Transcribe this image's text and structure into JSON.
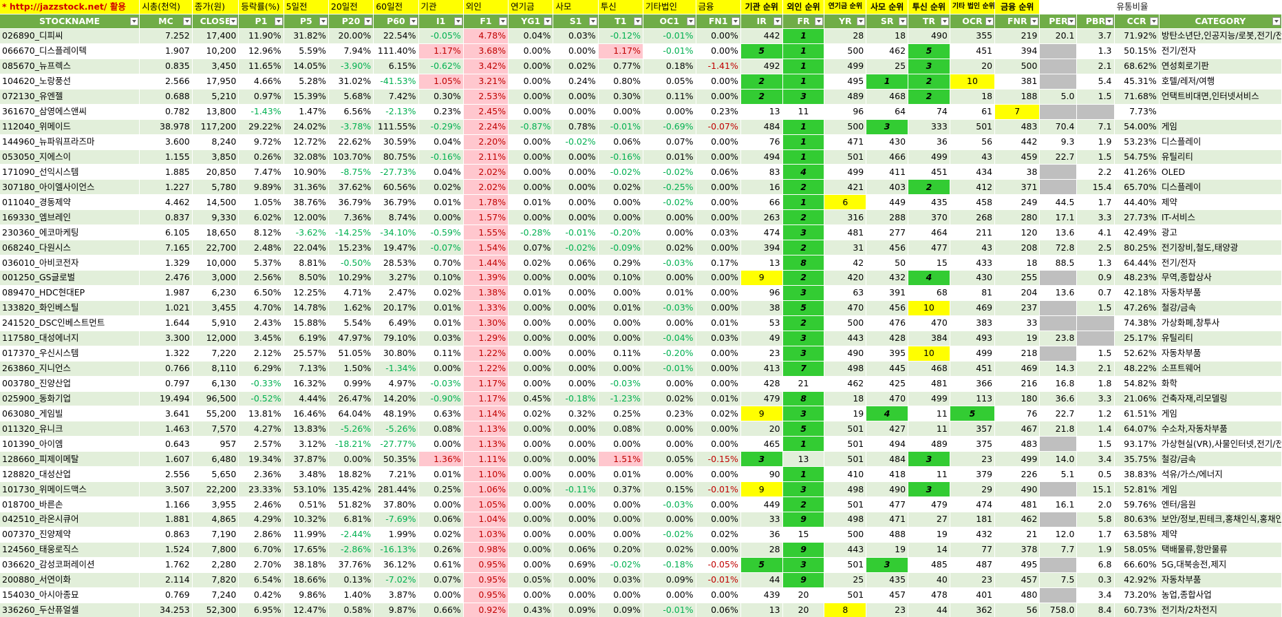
{
  "title_row": [
    "* http://jazzstock.net/ 활용",
    "시총(천억)",
    "종가(원)",
    "등락률(%)",
    "5일전",
    "20일전",
    "60일전",
    "기관",
    "외인",
    "연기금",
    "사모",
    "투신",
    "기타법인",
    "금융",
    "기관 순위",
    "외인 순위",
    "연기금 순위",
    "사모 순위",
    "투신 순위",
    "기타 법인 순위",
    "금융 순위",
    "",
    "",
    "유통비율",
    ""
  ],
  "headers": [
    "STOCKNAME",
    "MC",
    "CLOSE",
    "P1",
    "P5",
    "P20",
    "P60",
    "I1",
    "F1",
    "YG1",
    "S1",
    "T1",
    "OC1",
    "FN1",
    "IR",
    "FR",
    "YR",
    "SR",
    "TR",
    "OCR",
    "FNR",
    "PER",
    "PBR",
    "CCR",
    "CATEGORY"
  ],
  "rows": [
    [
      "026890_디피씨",
      "7.252",
      "17,400",
      "11.90%",
      "31.82%",
      "20.00%",
      "22.54%",
      "-0.05%",
      "4.78%",
      "0.04%",
      "0.03%",
      "-0.12%",
      "-0.01%",
      "0.00%",
      "442",
      "1",
      "28",
      "18",
      "490",
      "355",
      "219",
      "20.1",
      "3.7",
      "71.92%",
      "방탄소년단,인공지능/로봇,전기/전자"
    ],
    [
      "066670_디스플레이텍",
      "1.907",
      "10,200",
      "12.96%",
      "5.59%",
      "7.94%",
      "111.40%",
      "1.17%",
      "3.68%",
      "0.00%",
      "0.00%",
      "1.17%",
      "-0.01%",
      "0.00%",
      "5",
      "1",
      "500",
      "462",
      "5",
      "451",
      "394",
      "",
      "1.3",
      "50.15%",
      "전기/전자"
    ],
    [
      "085670_뉴프렉스",
      "0.835",
      "3,450",
      "11.65%",
      "14.05%",
      "-3.90%",
      "6.15%",
      "-0.62%",
      "3.42%",
      "0.00%",
      "0.02%",
      "0.77%",
      "0.18%",
      "-1.41%",
      "492",
      "1",
      "499",
      "25",
      "3",
      "20",
      "500",
      "",
      "2.1",
      "68.62%",
      "연성회로기판"
    ],
    [
      "104620_노랑풍선",
      "2.566",
      "17,950",
      "4.66%",
      "5.28%",
      "31.02%",
      "-41.53%",
      "1.05%",
      "3.21%",
      "0.00%",
      "0.24%",
      "0.80%",
      "0.05%",
      "0.00%",
      "2",
      "1",
      "495",
      "1",
      "2",
      "10",
      "381",
      "",
      "5.4",
      "45.31%",
      "호텔/레저/여행"
    ],
    [
      "072130_유엔젤",
      "0.688",
      "5,210",
      "0.97%",
      "15.39%",
      "5.68%",
      "7.42%",
      "0.30%",
      "2.53%",
      "0.00%",
      "0.00%",
      "0.30%",
      "0.11%",
      "0.00%",
      "2",
      "3",
      "489",
      "468",
      "2",
      "18",
      "188",
      "5.0",
      "1.5",
      "71.68%",
      "언택트비대면,인터넷서비스"
    ],
    [
      "361670_삼영에스앤씨",
      "0.782",
      "13,800",
      "-1.43%",
      "1.47%",
      "6.56%",
      "-2.13%",
      "0.23%",
      "2.45%",
      "0.00%",
      "0.00%",
      "0.00%",
      "0.00%",
      "0.23%",
      "13",
      "11",
      "96",
      "64",
      "74",
      "61",
      "7",
      "",
      "",
      "7.73%",
      ""
    ],
    [
      "112040_위메이드",
      "38.978",
      "117,200",
      "29.22%",
      "24.02%",
      "-3.78%",
      "111.55%",
      "-0.29%",
      "2.24%",
      "-0.87%",
      "0.78%",
      "-0.01%",
      "-0.69%",
      "-0.07%",
      "484",
      "1",
      "500",
      "3",
      "333",
      "501",
      "483",
      "70.4",
      "7.1",
      "54.00%",
      "게임"
    ],
    [
      "144960_뉴파워프라즈마",
      "3.600",
      "8,240",
      "9.72%",
      "12.72%",
      "22.62%",
      "30.59%",
      "0.04%",
      "2.20%",
      "0.00%",
      "-0.02%",
      "0.06%",
      "0.07%",
      "0.00%",
      "76",
      "1",
      "471",
      "430",
      "36",
      "56",
      "442",
      "9.3",
      "1.9",
      "53.23%",
      "디스플레이"
    ],
    [
      "053050_지에스이",
      "1.155",
      "3,850",
      "0.26%",
      "32.08%",
      "103.70%",
      "80.75%",
      "-0.16%",
      "2.11%",
      "0.00%",
      "0.00%",
      "-0.16%",
      "0.01%",
      "0.00%",
      "494",
      "1",
      "501",
      "466",
      "499",
      "43",
      "459",
      "22.7",
      "1.5",
      "54.75%",
      "유틸리티"
    ],
    [
      "171090_선익시스템",
      "1.885",
      "20,850",
      "7.47%",
      "10.90%",
      "-8.75%",
      "-27.73%",
      "0.04%",
      "2.02%",
      "0.00%",
      "0.00%",
      "-0.02%",
      "-0.02%",
      "0.06%",
      "83",
      "4",
      "499",
      "411",
      "451",
      "434",
      "38",
      "",
      "2.2",
      "41.26%",
      "OLED"
    ],
    [
      "307180_아이엘사이언스",
      "1.227",
      "5,780",
      "9.89%",
      "31.36%",
      "37.62%",
      "60.56%",
      "0.02%",
      "2.02%",
      "0.00%",
      "0.00%",
      "0.02%",
      "-0.25%",
      "0.00%",
      "16",
      "2",
      "421",
      "403",
      "2",
      "412",
      "371",
      "",
      "15.4",
      "65.70%",
      "디스플레이"
    ],
    [
      "011040_경동제약",
      "4.462",
      "14,500",
      "1.05%",
      "38.76%",
      "36.79%",
      "36.79%",
      "0.01%",
      "1.78%",
      "0.01%",
      "0.00%",
      "0.00%",
      "-0.02%",
      "0.00%",
      "66",
      "1",
      "6",
      "449",
      "435",
      "458",
      "249",
      "44.5",
      "1.7",
      "44.40%",
      "제약"
    ],
    [
      "169330_엠브레인",
      "0.837",
      "9,330",
      "6.02%",
      "12.00%",
      "7.36%",
      "8.74%",
      "0.00%",
      "1.57%",
      "0.00%",
      "0.00%",
      "0.00%",
      "0.00%",
      "0.00%",
      "263",
      "2",
      "316",
      "288",
      "370",
      "268",
      "280",
      "17.1",
      "3.3",
      "27.73%",
      "IT-서비스"
    ],
    [
      "230360_에코마케팅",
      "6.105",
      "18,650",
      "8.12%",
      "-3.62%",
      "-14.25%",
      "-34.10%",
      "-0.59%",
      "1.55%",
      "-0.28%",
      "-0.01%",
      "-0.20%",
      "0.00%",
      "0.03%",
      "474",
      "3",
      "481",
      "277",
      "464",
      "211",
      "120",
      "13.6",
      "4.1",
      "42.49%",
      "광고"
    ],
    [
      "068240_다원시스",
      "7.165",
      "22,700",
      "2.48%",
      "22.04%",
      "15.23%",
      "19.47%",
      "-0.07%",
      "1.54%",
      "0.07%",
      "-0.02%",
      "-0.09%",
      "0.02%",
      "0.00%",
      "394",
      "2",
      "31",
      "456",
      "477",
      "43",
      "208",
      "72.8",
      "2.5",
      "80.25%",
      "전기장비,철도,태양광"
    ],
    [
      "036010_아비코전자",
      "1.329",
      "10,000",
      "5.37%",
      "8.81%",
      "-0.50%",
      "28.53%",
      "0.70%",
      "1.44%",
      "0.02%",
      "0.06%",
      "0.29%",
      "-0.03%",
      "0.17%",
      "13",
      "8",
      "42",
      "50",
      "15",
      "433",
      "18",
      "88.5",
      "1.3",
      "64.44%",
      "전기/전자"
    ],
    [
      "001250_GS글로벌",
      "2.476",
      "3,000",
      "2.56%",
      "8.50%",
      "10.29%",
      "3.27%",
      "0.10%",
      "1.39%",
      "0.00%",
      "0.00%",
      "0.10%",
      "0.00%",
      "0.00%",
      "9",
      "2",
      "420",
      "432",
      "4",
      "430",
      "255",
      "",
      "0.9",
      "48.23%",
      "무역,종합상사"
    ],
    [
      "089470_HDC현대EP",
      "1.987",
      "6,230",
      "6.50%",
      "12.25%",
      "4.71%",
      "2.47%",
      "0.02%",
      "1.38%",
      "0.01%",
      "0.00%",
      "0.00%",
      "0.01%",
      "0.00%",
      "96",
      "3",
      "63",
      "391",
      "68",
      "81",
      "204",
      "13.6",
      "0.7",
      "42.18%",
      "자동차부품"
    ],
    [
      "133820_화인베스틸",
      "1.021",
      "3,455",
      "4.70%",
      "14.78%",
      "1.62%",
      "20.17%",
      "0.01%",
      "1.33%",
      "0.00%",
      "0.00%",
      "0.01%",
      "-0.03%",
      "0.00%",
      "38",
      "5",
      "470",
      "456",
      "10",
      "469",
      "237",
      "",
      "1.5",
      "47.26%",
      "철강/금속"
    ],
    [
      "241520_DSC인베스트먼트",
      "1.644",
      "5,910",
      "2.43%",
      "15.88%",
      "5.54%",
      "6.49%",
      "0.01%",
      "1.30%",
      "0.00%",
      "0.00%",
      "0.00%",
      "0.00%",
      "0.01%",
      "53",
      "2",
      "500",
      "476",
      "470",
      "383",
      "33",
      "",
      "",
      "74.38%",
      "가상화폐,창투사"
    ],
    [
      "117580_대성에너지",
      "3.300",
      "12,000",
      "3.45%",
      "6.19%",
      "47.97%",
      "79.10%",
      "0.03%",
      "1.29%",
      "0.00%",
      "0.00%",
      "0.00%",
      "-0.04%",
      "0.03%",
      "49",
      "3",
      "443",
      "428",
      "384",
      "493",
      "19",
      "23.8",
      "",
      "25.17%",
      "유틸리티"
    ],
    [
      "017370_우신시스템",
      "1.322",
      "7,220",
      "2.12%",
      "25.57%",
      "51.05%",
      "30.80%",
      "0.11%",
      "1.22%",
      "0.00%",
      "0.00%",
      "0.11%",
      "-0.20%",
      "0.00%",
      "23",
      "3",
      "490",
      "395",
      "10",
      "499",
      "218",
      "",
      "1.5",
      "52.62%",
      "자동차부품"
    ],
    [
      "263860_지니언스",
      "0.766",
      "8,110",
      "6.29%",
      "7.13%",
      "1.50%",
      "-1.34%",
      "0.00%",
      "1.22%",
      "0.00%",
      "0.00%",
      "0.00%",
      "-0.01%",
      "0.00%",
      "413",
      "7",
      "498",
      "445",
      "468",
      "451",
      "469",
      "14.3",
      "2.1",
      "48.22%",
      "소프트웨어"
    ],
    [
      "003780_진양산업",
      "0.797",
      "6,130",
      "-0.33%",
      "16.32%",
      "0.99%",
      "4.97%",
      "-0.03%",
      "1.17%",
      "0.00%",
      "0.00%",
      "-0.03%",
      "0.00%",
      "0.00%",
      "428",
      "21",
      "462",
      "425",
      "481",
      "366",
      "216",
      "16.8",
      "1.8",
      "54.82%",
      "화학"
    ],
    [
      "025900_동화기업",
      "19.494",
      "96,500",
      "-0.52%",
      "4.44%",
      "26.47%",
      "14.20%",
      "-0.90%",
      "1.17%",
      "0.45%",
      "-0.18%",
      "-1.23%",
      "0.02%",
      "0.01%",
      "479",
      "8",
      "18",
      "470",
      "499",
      "113",
      "180",
      "36.6",
      "3.3",
      "21.06%",
      "건축자재,리모델링"
    ],
    [
      "063080_게임빌",
      "3.641",
      "55,200",
      "13.81%",
      "16.46%",
      "64.04%",
      "48.19%",
      "0.63%",
      "1.14%",
      "0.02%",
      "0.32%",
      "0.25%",
      "0.23%",
      "0.02%",
      "9",
      "3",
      "19",
      "4",
      "11",
      "5",
      "76",
      "22.7",
      "1.2",
      "61.51%",
      "게임"
    ],
    [
      "011320_유니크",
      "1.463",
      "7,570",
      "4.27%",
      "13.83%",
      "-5.26%",
      "-5.26%",
      "0.08%",
      "1.13%",
      "0.00%",
      "0.00%",
      "0.08%",
      "0.00%",
      "0.00%",
      "20",
      "5",
      "501",
      "427",
      "11",
      "357",
      "467",
      "21.8",
      "1.4",
      "64.07%",
      "수소차,자동차부품"
    ],
    [
      "101390_아이엠",
      "0.643",
      "957",
      "2.57%",
      "3.12%",
      "-18.21%",
      "-27.77%",
      "0.00%",
      "1.13%",
      "0.00%",
      "0.00%",
      "0.00%",
      "0.00%",
      "0.00%",
      "465",
      "1",
      "501",
      "494",
      "489",
      "375",
      "483",
      "",
      "1.5",
      "93.17%",
      "가상현실(VR),사물인터넷,전기/전자"
    ],
    [
      "128660_피제이메탈",
      "1.607",
      "6,480",
      "19.34%",
      "37.87%",
      "0.00%",
      "50.35%",
      "1.36%",
      "1.11%",
      "0.00%",
      "0.00%",
      "1.51%",
      "0.05%",
      "-0.15%",
      "3",
      "13",
      "501",
      "484",
      "3",
      "23",
      "499",
      "14.0",
      "3.4",
      "35.75%",
      "철강/금속"
    ],
    [
      "128820_대성산업",
      "2.556",
      "5,650",
      "2.36%",
      "3.48%",
      "18.82%",
      "7.21%",
      "0.01%",
      "1.10%",
      "0.00%",
      "0.00%",
      "0.01%",
      "0.00%",
      "0.00%",
      "90",
      "1",
      "410",
      "418",
      "11",
      "379",
      "226",
      "5.1",
      "0.5",
      "38.83%",
      "석유/가스/에너지"
    ],
    [
      "101730_위메이드맥스",
      "3.507",
      "22,200",
      "23.33%",
      "53.10%",
      "135.42%",
      "281.44%",
      "0.25%",
      "1.06%",
      "0.00%",
      "-0.11%",
      "0.37%",
      "0.15%",
      "-0.01%",
      "9",
      "3",
      "498",
      "490",
      "3",
      "29",
      "490",
      "",
      "15.1",
      "52.81%",
      "게임"
    ],
    [
      "018700_바른손",
      "1.166",
      "3,955",
      "2.46%",
      "0.51%",
      "51.82%",
      "37.80%",
      "0.00%",
      "1.05%",
      "0.00%",
      "0.00%",
      "0.00%",
      "-0.03%",
      "0.00%",
      "449",
      "2",
      "501",
      "477",
      "479",
      "474",
      "481",
      "16.1",
      "2.0",
      "59.76%",
      "엔터/음원"
    ],
    [
      "042510_라온시큐어",
      "1.881",
      "4,865",
      "4.29%",
      "10.32%",
      "6.81%",
      "-7.69%",
      "0.06%",
      "1.04%",
      "0.00%",
      "0.00%",
      "0.00%",
      "0.00%",
      "0.00%",
      "33",
      "9",
      "498",
      "471",
      "27",
      "181",
      "462",
      "",
      "5.8",
      "80.63%",
      "보안/정보,핀테크,홍채인식,홍채인식"
    ],
    [
      "007370_진양제약",
      "0.863",
      "7,190",
      "2.86%",
      "11.99%",
      "-2.44%",
      "1.99%",
      "0.02%",
      "1.03%",
      "0.00%",
      "0.00%",
      "0.00%",
      "-0.02%",
      "0.02%",
      "36",
      "15",
      "500",
      "488",
      "19",
      "432",
      "21",
      "12.0",
      "1.7",
      "63.58%",
      "제약"
    ],
    [
      "124560_태웅로직스",
      "1.524",
      "7,800",
      "6.70%",
      "17.65%",
      "-2.86%",
      "-16.13%",
      "0.26%",
      "0.98%",
      "0.00%",
      "0.06%",
      "0.20%",
      "0.02%",
      "0.00%",
      "28",
      "9",
      "443",
      "19",
      "14",
      "77",
      "378",
      "7.7",
      "1.9",
      "58.05%",
      "택배물류,항만물류"
    ],
    [
      "036620_감성코퍼레이션",
      "1.762",
      "2,280",
      "2.70%",
      "38.18%",
      "37.76%",
      "36.12%",
      "0.61%",
      "0.95%",
      "0.00%",
      "0.69%",
      "-0.02%",
      "-0.18%",
      "-0.05%",
      "5",
      "3",
      "501",
      "3",
      "485",
      "487",
      "495",
      "",
      "6.8",
      "66.60%",
      "5G,대북송전,제지"
    ],
    [
      "200880_서연이화",
      "2.114",
      "7,820",
      "6.54%",
      "18.66%",
      "0.13%",
      "-7.02%",
      "0.07%",
      "0.95%",
      "0.05%",
      "0.00%",
      "0.03%",
      "0.09%",
      "-0.01%",
      "44",
      "9",
      "25",
      "435",
      "40",
      "23",
      "457",
      "7.5",
      "0.3",
      "42.92%",
      "자동차부품"
    ],
    [
      "154030_아시아종묘",
      "0.769",
      "7,240",
      "0.42%",
      "9.86%",
      "1.40%",
      "3.87%",
      "0.00%",
      "0.95%",
      "0.00%",
      "0.00%",
      "0.00%",
      "0.00%",
      "0.00%",
      "439",
      "20",
      "501",
      "457",
      "478",
      "401",
      "480",
      "",
      "3.4",
      "73.20%",
      "농업,종합사업"
    ],
    [
      "336260_두산퓨얼셀",
      "34.253",
      "52,300",
      "6.95%",
      "12.47%",
      "0.58%",
      "9.87%",
      "0.66%",
      "0.92%",
      "0.43%",
      "0.09%",
      "0.09%",
      "-0.01%",
      "0.06%",
      "13",
      "20",
      "8",
      "23",
      "44",
      "362",
      "56",
      "758.0",
      "8.4",
      "60.73%",
      "전기차/2차전지"
    ]
  ]
}
